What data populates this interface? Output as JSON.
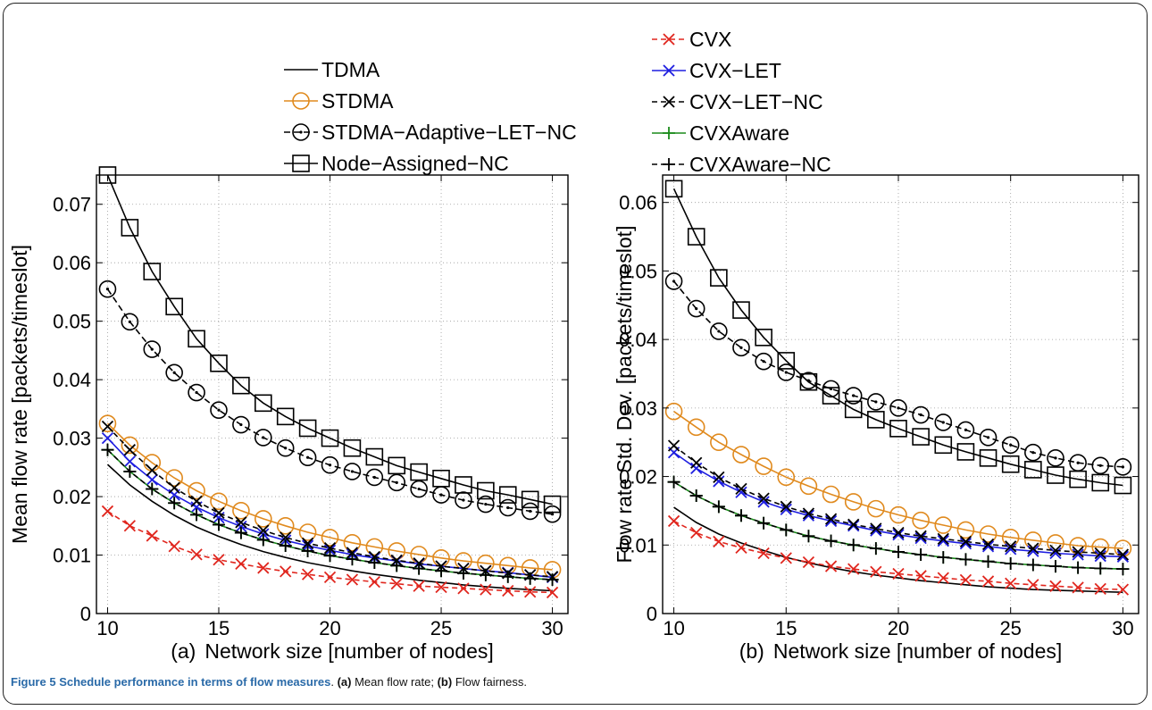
{
  "figure": {
    "caption": {
      "label": "Figure 5",
      "title": "Schedule performance in terms of flow measures",
      "text_sep": ". ",
      "a_tag": "(a)",
      "a_text": " Mean flow rate; ",
      "b_tag": "(b)",
      "b_text": " Flow fairness."
    }
  },
  "legend": {
    "placement": "top",
    "col1": [
      "TDMA",
      "STDMA",
      "STDMA−Adaptive−LET−NC",
      "Node−Assigned−NC"
    ],
    "col2": [
      "CVX",
      "CVX−LET",
      "CVX−LET−NC",
      "CVXAware",
      "CVXAware−NC"
    ]
  },
  "styles": {
    "TDMA": {
      "color": "#000000",
      "dash": "",
      "marker": "none"
    },
    "STDMA": {
      "color": "#e08a1e",
      "dash": "",
      "marker": "circle"
    },
    "STDMA−Adaptive−LET−NC": {
      "color": "#000000",
      "dash": "7,4",
      "marker": "circle-dot"
    },
    "Node−Assigned−NC": {
      "color": "#000000",
      "dash": "",
      "marker": "square"
    },
    "CVX": {
      "color": "#e0261e",
      "dash": "6,4",
      "marker": "x"
    },
    "CVX−LET": {
      "color": "#1e1ee0",
      "dash": "",
      "marker": "x"
    },
    "CVX−LET−NC": {
      "color": "#000000",
      "dash": "6,4",
      "marker": "x"
    },
    "CVXAware": {
      "color": "#1a8a1a",
      "dash": "",
      "marker": "plus"
    },
    "CVXAware−NC": {
      "color": "#000000",
      "dash": "6,4",
      "marker": "plus"
    }
  },
  "chart_data": [
    {
      "type": "line",
      "panel_label": "(a)",
      "xlabel": "Network size [number of nodes]",
      "ylabel": "Mean flow rate [packets/timeslot]",
      "xlim": [
        9.5,
        30.7
      ],
      "ylim": [
        0,
        0.075
      ],
      "xticks": [
        10,
        15,
        20,
        25,
        30
      ],
      "yticks": [
        0,
        0.01,
        0.02,
        0.03,
        0.04,
        0.05,
        0.06,
        0.07
      ],
      "ytick_labels": [
        "0",
        "0.01",
        "0.02",
        "0.03",
        "0.04",
        "0.05",
        "0.06",
        "0.07"
      ],
      "grid": true,
      "x": [
        10,
        11,
        12,
        13,
        14,
        15,
        16,
        17,
        18,
        19,
        20,
        21,
        22,
        23,
        24,
        25,
        26,
        27,
        28,
        29,
        30
      ],
      "series": [
        {
          "name": "TDMA",
          "values": [
            0.0255,
            0.022,
            0.0192,
            0.0168,
            0.0148,
            0.0132,
            0.0118,
            0.0106,
            0.0096,
            0.0087,
            0.008,
            0.0073,
            0.0067,
            0.0062,
            0.0057,
            0.0053,
            0.0049,
            0.0046,
            0.0043,
            0.0041,
            0.0039
          ]
        },
        {
          "name": "STDMA",
          "values": [
            0.0325,
            0.0288,
            0.0258,
            0.0232,
            0.021,
            0.0192,
            0.0176,
            0.0162,
            0.015,
            0.0139,
            0.013,
            0.0121,
            0.0114,
            0.0107,
            0.0101,
            0.0095,
            0.009,
            0.0086,
            0.0082,
            0.0078,
            0.0075
          ]
        },
        {
          "name": "STDMA−Adaptive−LET−NC",
          "values": [
            0.0555,
            0.0499,
            0.0452,
            0.0412,
            0.0378,
            0.0348,
            0.0323,
            0.0301,
            0.0283,
            0.0267,
            0.0254,
            0.0243,
            0.0233,
            0.0224,
            0.0213,
            0.0203,
            0.0194,
            0.0187,
            0.0181,
            0.0175,
            0.017
          ]
        },
        {
          "name": "Node−Assigned−NC",
          "values": [
            0.075,
            0.066,
            0.0585,
            0.0525,
            0.047,
            0.0428,
            0.039,
            0.036,
            0.0337,
            0.0317,
            0.03,
            0.0283,
            0.0268,
            0.0253,
            0.0242,
            0.0231,
            0.022,
            0.021,
            0.0203,
            0.0195,
            0.0187
          ]
        },
        {
          "name": "CVX",
          "values": [
            0.0175,
            0.015,
            0.0133,
            0.0115,
            0.0101,
            0.0092,
            0.0085,
            0.0078,
            0.0072,
            0.0067,
            0.0062,
            0.0058,
            0.0054,
            0.0051,
            0.0047,
            0.0045,
            0.0043,
            0.0041,
            0.0039,
            0.0037,
            0.0036
          ]
        },
        {
          "name": "CVX−LET",
          "values": [
            0.03,
            0.026,
            0.0229,
            0.0203,
            0.0182,
            0.0164,
            0.0149,
            0.0136,
            0.0125,
            0.0116,
            0.0108,
            0.0101,
            0.0095,
            0.009,
            0.0085,
            0.0081,
            0.0077,
            0.0073,
            0.007,
            0.0066,
            0.0062
          ]
        },
        {
          "name": "CVX−LET−NC",
          "values": [
            0.032,
            0.028,
            0.0245,
            0.0215,
            0.0192,
            0.0172,
            0.0156,
            0.0142,
            0.013,
            0.012,
            0.0112,
            0.0104,
            0.0097,
            0.0091,
            0.0086,
            0.0081,
            0.0077,
            0.0073,
            0.0069,
            0.0066,
            0.0063
          ]
        },
        {
          "name": "CVXAware",
          "values": [
            0.028,
            0.0243,
            0.0213,
            0.0189,
            0.0169,
            0.0152,
            0.0138,
            0.0126,
            0.0116,
            0.0107,
            0.0099,
            0.0093,
            0.0087,
            0.0082,
            0.0077,
            0.0073,
            0.0069,
            0.0066,
            0.0063,
            0.006,
            0.0058
          ]
        },
        {
          "name": "CVXAware−NC",
          "values": [
            0.028,
            0.0243,
            0.0213,
            0.0189,
            0.0169,
            0.0152,
            0.0138,
            0.0126,
            0.0116,
            0.0107,
            0.0099,
            0.0093,
            0.0087,
            0.0082,
            0.0077,
            0.0073,
            0.0069,
            0.0066,
            0.0063,
            0.006,
            0.0058
          ]
        }
      ]
    },
    {
      "type": "line",
      "panel_label": "(b)",
      "xlabel": "Network size [number of nodes]",
      "ylabel": "Flow rate Std. Dev. [packets/timeslot]",
      "xlim": [
        9.5,
        30.7
      ],
      "ylim": [
        0,
        0.064
      ],
      "xticks": [
        10,
        15,
        20,
        25,
        30
      ],
      "yticks": [
        0,
        0.01,
        0.02,
        0.03,
        0.04,
        0.05,
        0.06
      ],
      "ytick_labels": [
        "0",
        "0.01",
        "0.02",
        "0.03",
        "0.04",
        "0.05",
        "0.06"
      ],
      "grid": true,
      "x": [
        10,
        11,
        12,
        13,
        14,
        15,
        16,
        17,
        18,
        19,
        20,
        21,
        22,
        23,
        24,
        25,
        26,
        27,
        28,
        29,
        30
      ],
      "series": [
        {
          "name": "TDMA",
          "values": [
            0.0155,
            0.0133,
            0.0116,
            0.0103,
            0.0092,
            0.0082,
            0.0074,
            0.0067,
            0.0061,
            0.0056,
            0.0052,
            0.0048,
            0.0045,
            0.0042,
            0.0039,
            0.0037,
            0.0035,
            0.0034,
            0.0033,
            0.0032,
            0.0031
          ]
        },
        {
          "name": "STDMA",
          "values": [
            0.0295,
            0.0272,
            0.025,
            0.0232,
            0.0215,
            0.0199,
            0.0186,
            0.0174,
            0.0163,
            0.0153,
            0.0144,
            0.0136,
            0.0129,
            0.0122,
            0.0116,
            0.0111,
            0.0107,
            0.0103,
            0.0099,
            0.0097,
            0.0095
          ]
        },
        {
          "name": "STDMA−Adaptive−LET−NC",
          "values": [
            0.0485,
            0.0445,
            0.0412,
            0.0388,
            0.0368,
            0.0352,
            0.034,
            0.0328,
            0.0318,
            0.0309,
            0.03,
            0.029,
            0.0279,
            0.0268,
            0.0257,
            0.0246,
            0.0235,
            0.0227,
            0.022,
            0.0216,
            0.0214
          ]
        },
        {
          "name": "Node−Assigned−NC",
          "values": [
            0.062,
            0.055,
            0.049,
            0.0443,
            0.0403,
            0.0369,
            0.0338,
            0.0318,
            0.0298,
            0.0283,
            0.027,
            0.0258,
            0.0246,
            0.0236,
            0.0227,
            0.0218,
            0.021,
            0.0202,
            0.0196,
            0.0191,
            0.0187
          ]
        },
        {
          "name": "CVX",
          "values": [
            0.0135,
            0.0118,
            0.0105,
            0.0096,
            0.0088,
            0.0081,
            0.0075,
            0.0069,
            0.0065,
            0.0061,
            0.0058,
            0.0055,
            0.0052,
            0.0049,
            0.0047,
            0.0044,
            0.0042,
            0.004,
            0.0038,
            0.0036,
            0.0035
          ]
        },
        {
          "name": "CVX−LET",
          "values": [
            0.0235,
            0.0212,
            0.0193,
            0.0177,
            0.0163,
            0.0152,
            0.0143,
            0.0135,
            0.0128,
            0.0121,
            0.0115,
            0.011,
            0.0106,
            0.0102,
            0.0098,
            0.0094,
            0.0091,
            0.0088,
            0.0086,
            0.0084,
            0.0083
          ]
        },
        {
          "name": "CVX−LET−NC",
          "values": [
            0.0245,
            0.022,
            0.0199,
            0.0182,
            0.0168,
            0.0156,
            0.0146,
            0.0138,
            0.013,
            0.0124,
            0.0118,
            0.0113,
            0.0109,
            0.0105,
            0.0101,
            0.0098,
            0.0095,
            0.0092,
            0.009,
            0.0088,
            0.0086
          ]
        },
        {
          "name": "CVXAware",
          "values": [
            0.0192,
            0.0172,
            0.0156,
            0.0143,
            0.0132,
            0.0122,
            0.0113,
            0.0106,
            0.01,
            0.0095,
            0.009,
            0.0086,
            0.0082,
            0.0079,
            0.0076,
            0.0073,
            0.0071,
            0.0069,
            0.0067,
            0.0066,
            0.0065
          ]
        },
        {
          "name": "CVXAware−NC",
          "values": [
            0.0192,
            0.0172,
            0.0156,
            0.0143,
            0.0132,
            0.0122,
            0.0113,
            0.0106,
            0.01,
            0.0095,
            0.009,
            0.0086,
            0.0082,
            0.0079,
            0.0076,
            0.0073,
            0.0071,
            0.0069,
            0.0067,
            0.0066,
            0.0065
          ]
        }
      ]
    }
  ]
}
